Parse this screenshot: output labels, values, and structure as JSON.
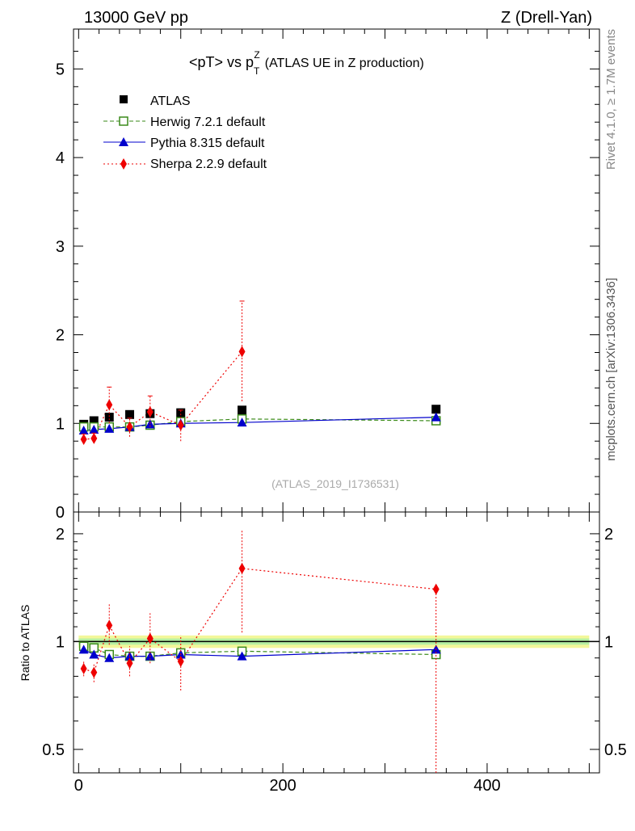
{
  "header": {
    "left": "13000 GeV pp",
    "right": "Z (Drell-Yan)",
    "side_top": "Rivet 4.1.0, ≥ 1.7M events",
    "side_bottom": "mcplots.cern.ch [arXiv:1306.3436]",
    "watermark": "(ATLAS_2019_I1736531)"
  },
  "chart_data": {
    "type": "scatter",
    "title_main": "<pT> vs p",
    "title_sub": "T",
    "title_sup": "Z",
    "title_rest": "(ATLAS UE in Z production)",
    "top_ylim": [
      0,
      5.45
    ],
    "top_yticks": [
      "0",
      "1",
      "2",
      "3",
      "4",
      "5"
    ],
    "xlim": [
      -5,
      510
    ],
    "xticks": [
      "0",
      "200",
      "400"
    ],
    "ratio_ylabel": "Ratio to ATLAS",
    "ratio_ylim": [
      0.43,
      2.3
    ],
    "ratio_yticks": [
      "0.5",
      "1",
      "2"
    ],
    "series": [
      {
        "name": "ATLAS",
        "color": "#000000",
        "marker": "square-filled",
        "x": [
          5,
          15,
          30,
          50,
          70,
          100,
          160,
          350
        ],
        "y": [
          0.99,
          1.03,
          1.07,
          1.1,
          1.11,
          1.12,
          1.15,
          1.16
        ]
      },
      {
        "name": "Herwig 7.2.1 default",
        "color": "#3a8a1a",
        "marker": "square-open",
        "dash": "5,3",
        "x": [
          5,
          15,
          30,
          50,
          70,
          100,
          160,
          350
        ],
        "y": [
          0.96,
          0.96,
          0.96,
          0.96,
          0.98,
          1.02,
          1.05,
          1.03
        ]
      },
      {
        "name": "Pythia 8.315 default",
        "color": "#0000cc",
        "marker": "triangle",
        "x": [
          5,
          15,
          30,
          50,
          70,
          100,
          160,
          350
        ],
        "y": [
          0.92,
          0.93,
          0.94,
          0.96,
          0.99,
          1.0,
          1.01,
          1.07
        ]
      },
      {
        "name": "Sherpa 2.2.9 default",
        "color": "#ee0000",
        "marker": "diamond",
        "dash": "2,3",
        "x": [
          5,
          15,
          30,
          50,
          70,
          100,
          160,
          350
        ],
        "y": [
          0.82,
          0.83,
          1.21,
          0.96,
          1.13,
          0.98,
          1.81,
          null
        ],
        "err_lo": [
          0.77,
          0.78,
          1.0,
          0.85,
          0.96,
          0.8,
          1.25,
          null
        ],
        "err_hi": [
          0.88,
          0.89,
          1.41,
          1.06,
          1.31,
          1.15,
          2.38,
          null
        ]
      }
    ],
    "ratio_series": [
      {
        "name": "Herwig 7.2.1 default",
        "y": [
          0.97,
          0.96,
          0.92,
          0.91,
          0.91,
          0.93,
          0.94,
          0.92
        ]
      },
      {
        "name": "Pythia 8.315 default",
        "y": [
          0.95,
          0.92,
          0.9,
          0.91,
          0.91,
          0.92,
          0.91,
          0.95
        ]
      },
      {
        "name": "Sherpa 2.2.9 default",
        "y": [
          0.84,
          0.82,
          1.11,
          0.87,
          1.02,
          0.88,
          1.6,
          1.4
        ],
        "err_lo": [
          0.8,
          0.77,
          0.98,
          0.8,
          0.87,
          0.73,
          1.06,
          0.3
        ],
        "err_hi": [
          0.88,
          0.87,
          1.27,
          0.97,
          1.2,
          1.04,
          2.05,
          1.42
        ]
      }
    ]
  }
}
